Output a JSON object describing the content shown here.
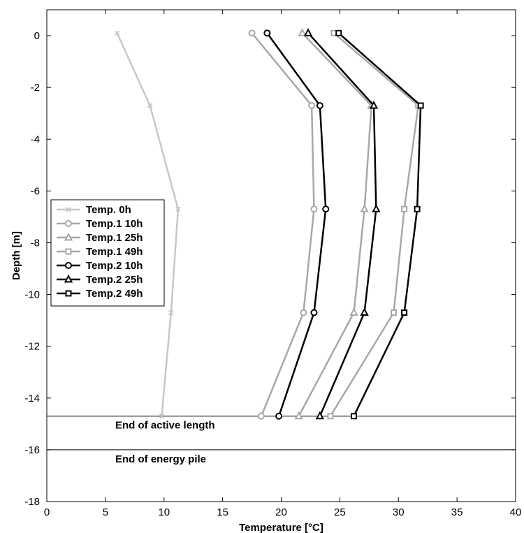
{
  "chart_data": {
    "type": "line",
    "title": "",
    "xlabel": "Temperature [°C]",
    "ylabel": "Depth [m]",
    "xlim": [
      0,
      40
    ],
    "ylim": [
      -18,
      1
    ],
    "xticks": [
      "0",
      "5",
      "10",
      "15",
      "20",
      "25",
      "30",
      "35",
      "40"
    ],
    "yticks": [
      "0",
      "-2",
      "-4",
      "-6",
      "-8",
      "-10",
      "-12",
      "-14",
      "-16",
      "-18"
    ],
    "grid": false,
    "legend_position": "middle-left",
    "depths": [
      0.1,
      -2.7,
      -6.7,
      -10.7,
      -14.7
    ],
    "series": [
      {
        "name": "Temp. 0h",
        "color": "#c8c8c8",
        "marker": "x",
        "x": [
          6.0,
          8.8,
          11.2,
          10.6,
          9.8
        ]
      },
      {
        "name": "Temp.1 10h",
        "color": "#a8a8a8",
        "marker": "circle",
        "x": [
          17.5,
          22.6,
          22.8,
          21.9,
          18.3
        ]
      },
      {
        "name": "Temp.1 25h",
        "color": "#a8a8a8",
        "marker": "triangle",
        "x": [
          21.8,
          27.7,
          27.1,
          26.2,
          21.5
        ]
      },
      {
        "name": "Temp.1 49h",
        "color": "#a8a8a8",
        "marker": "square",
        "x": [
          24.5,
          31.7,
          30.5,
          29.6,
          24.2
        ]
      },
      {
        "name": "Temp.2 10h",
        "color": "#000000",
        "marker": "circle",
        "x": [
          18.8,
          23.3,
          23.8,
          22.8,
          19.8
        ]
      },
      {
        "name": "Temp.2 25h",
        "color": "#000000",
        "marker": "triangle",
        "x": [
          22.3,
          27.9,
          28.1,
          27.1,
          23.3
        ]
      },
      {
        "name": "Temp.2 49h",
        "color": "#000000",
        "marker": "square",
        "x": [
          24.9,
          31.9,
          31.6,
          30.5,
          26.2
        ]
      }
    ],
    "annotations": [
      {
        "y": -14.7,
        "text": "End of active length"
      },
      {
        "y": -16.0,
        "text": "End of energy pile"
      }
    ]
  }
}
